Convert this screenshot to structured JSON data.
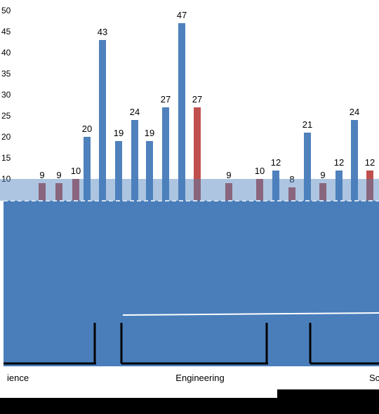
{
  "chart_data": {
    "type": "bar",
    "ylim": [
      0,
      50
    ],
    "yticks": [
      10,
      15,
      20,
      25,
      30,
      35,
      40,
      45,
      50
    ],
    "bars": [
      {
        "value": 9,
        "label": "9",
        "color": "#c0504d"
      },
      {
        "value": 9,
        "label": "9",
        "color": "#c0504d"
      },
      {
        "value": 10,
        "label": "10",
        "color": "#c0504d"
      },
      {
        "value": 20,
        "label": "20",
        "color": "#4f81bd"
      },
      {
        "value": 43,
        "label": "43",
        "color": "#4f81bd"
      },
      {
        "value": 19,
        "label": "19",
        "color": "#4f81bd"
      },
      {
        "value": 24,
        "label": "24",
        "color": "#4f81bd"
      },
      {
        "value": 19,
        "label": "19",
        "color": "#4f81bd"
      },
      {
        "value": 27,
        "label": "27",
        "color": "#4f81bd"
      },
      {
        "value": 47,
        "label": "47",
        "color": "#4f81bd"
      },
      {
        "value": 27,
        "label": "27",
        "color": "#c0504d"
      },
      {
        "value": 9,
        "label": "9",
        "color": "#c0504d"
      },
      {
        "value": 10,
        "label": "10",
        "color": "#c0504d"
      },
      {
        "value": 12,
        "label": "12",
        "color": "#4f81bd"
      },
      {
        "value": 8,
        "label": "8",
        "color": "#c0504d"
      },
      {
        "value": 21,
        "label": "21",
        "color": "#4f81bd"
      },
      {
        "value": 9,
        "label": "9",
        "color": "#c0504d"
      },
      {
        "value": 12,
        "label": "12",
        "color": "#4f81bd"
      },
      {
        "value": 24,
        "label": "24",
        "color": "#4f81bd"
      },
      {
        "value": 12,
        "label": "12",
        "color": "#c0504d"
      }
    ],
    "groups": [
      "ience",
      "Engineering",
      "Sc"
    ],
    "colors": {
      "blue": "#4f81bd",
      "red": "#c0504d",
      "band": "#4a7ebb"
    }
  }
}
